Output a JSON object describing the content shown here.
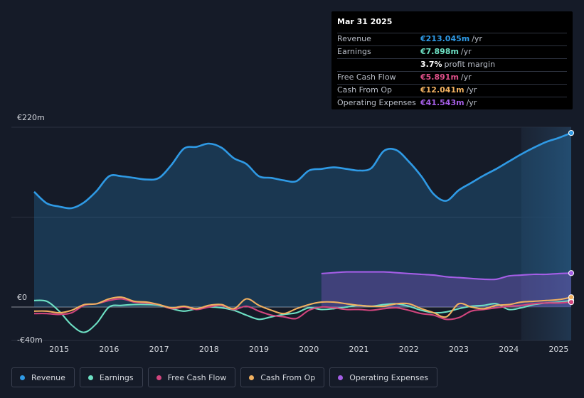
{
  "tooltip": {
    "date": "Mar 31 2025",
    "rows": [
      {
        "label": "Revenue",
        "value": "€213.045m",
        "unit": "/yr",
        "color": "#2f9ae5"
      },
      {
        "label": "Earnings",
        "value": "€7.898m",
        "unit": "/yr",
        "color": "#6de0c4"
      },
      {
        "label": "",
        "value": "3.7%",
        "unit": "profit margin",
        "color": "#ffffff"
      },
      {
        "label": "Free Cash Flow",
        "value": "€5.891m",
        "unit": "/yr",
        "color": "#e0508a"
      },
      {
        "label": "Cash From Op",
        "value": "€12.041m",
        "unit": "/yr",
        "color": "#f0b060"
      },
      {
        "label": "Operating Expenses",
        "value": "€41.543m",
        "unit": "/yr",
        "color": "#a45ee6"
      }
    ]
  },
  "legend": [
    {
      "label": "Revenue",
      "color": "#2f9ae5"
    },
    {
      "label": "Earnings",
      "color": "#6de0c4"
    },
    {
      "label": "Free Cash Flow",
      "color": "#d2457e"
    },
    {
      "label": "Cash From Op",
      "color": "#f0b060"
    },
    {
      "label": "Operating Expenses",
      "color": "#a45ee6"
    }
  ],
  "chart_data": {
    "type": "line",
    "y_tick_labels": [
      "€220m",
      "€0",
      "-€40m"
    ],
    "ylim": [
      -40,
      220
    ],
    "x_tick_labels": [
      "2015",
      "2016",
      "2017",
      "2018",
      "2019",
      "2020",
      "2021",
      "2022",
      "2023",
      "2024",
      "2025"
    ],
    "xlim": [
      2014.5,
      2025.25
    ],
    "forecast_shade_from": 2024.25,
    "series": [
      {
        "name": "Revenue",
        "color": "#2f9ae5",
        "fill": true,
        "x": [
          2014.5,
          2014.75,
          2015,
          2015.25,
          2015.5,
          2015.75,
          2016,
          2016.25,
          2016.5,
          2016.75,
          2017,
          2017.25,
          2017.5,
          2017.75,
          2018,
          2018.25,
          2018.5,
          2018.75,
          2019,
          2019.25,
          2019.5,
          2019.75,
          2020,
          2020.25,
          2020.5,
          2020.75,
          2021,
          2021.25,
          2021.5,
          2021.75,
          2022,
          2022.25,
          2022.5,
          2022.75,
          2023,
          2023.25,
          2023.5,
          2023.75,
          2024,
          2024.25,
          2024.5,
          2024.75,
          2025,
          2025.25
        ],
        "y": [
          141,
          127,
          123,
          121,
          128,
          142,
          160,
          160,
          158,
          156,
          158,
          174,
          194,
          196,
          200,
          195,
          182,
          175,
          160,
          158,
          155,
          154,
          167,
          169,
          171,
          169,
          167,
          170,
          191,
          192,
          178,
          160,
          138,
          130,
          143,
          152,
          161,
          169,
          178,
          187,
          195,
          202,
          207,
          213
        ]
      },
      {
        "name": "Earnings",
        "color": "#6de0c4",
        "x": [
          2014.5,
          2014.75,
          2015,
          2015.25,
          2015.5,
          2015.75,
          2016,
          2016.25,
          2016.5,
          2016.75,
          2017,
          2017.25,
          2017.5,
          2017.75,
          2018,
          2018.25,
          2018.5,
          2018.75,
          2019,
          2019.25,
          2019.5,
          2019.75,
          2020,
          2020.25,
          2020.5,
          2020.75,
          2021,
          2021.25,
          2021.5,
          2021.75,
          2022,
          2022.25,
          2022.5,
          2022.75,
          2023,
          2023.25,
          2023.5,
          2023.75,
          2024,
          2024.25,
          2024.5,
          2024.75,
          2025,
          2025.25
        ],
        "y": [
          8,
          7,
          -5,
          -22,
          -31,
          -20,
          0,
          2,
          3,
          3,
          2,
          -2,
          -5,
          -2,
          0,
          -1,
          -4,
          -10,
          -15,
          -12,
          -9,
          -7,
          -1,
          -3,
          -2,
          0,
          2,
          1,
          3,
          4,
          1,
          -4,
          -7,
          -6,
          -2,
          1,
          2,
          4,
          -3,
          -1,
          3,
          5,
          6,
          8
        ]
      },
      {
        "name": "Free Cash Flow",
        "color": "#d2457e",
        "x": [
          2014.5,
          2014.75,
          2015,
          2015.25,
          2015.5,
          2015.75,
          2016,
          2016.25,
          2016.5,
          2016.75,
          2017,
          2017.25,
          2017.5,
          2017.75,
          2018,
          2018.25,
          2018.5,
          2018.75,
          2019,
          2019.25,
          2019.5,
          2019.75,
          2020,
          2020.25,
          2020.5,
          2020.75,
          2021,
          2021.25,
          2021.5,
          2021.75,
          2022,
          2022.25,
          2022.5,
          2022.75,
          2023,
          2023.25,
          2023.5,
          2023.75,
          2024,
          2024.25,
          2024.5,
          2024.75,
          2025,
          2025.25
        ],
        "y": [
          -8,
          -8,
          -9,
          -7,
          2,
          4,
          8,
          10,
          6,
          5,
          3,
          -2,
          0,
          -3,
          0,
          2,
          -3,
          1,
          -5,
          -10,
          -12,
          -14,
          -4,
          0,
          -1,
          -3,
          -3,
          -4,
          -2,
          -1,
          -4,
          -8,
          -10,
          -15,
          -13,
          -5,
          -3,
          -1,
          1,
          2,
          4,
          5,
          5,
          6
        ]
      },
      {
        "name": "Cash From Op",
        "color": "#f0b060",
        "x": [
          2014.5,
          2014.75,
          2015,
          2015.25,
          2015.5,
          2015.75,
          2016,
          2016.25,
          2016.5,
          2016.75,
          2017,
          2017.25,
          2017.5,
          2017.75,
          2018,
          2018.25,
          2018.5,
          2018.75,
          2019,
          2019.25,
          2019.5,
          2019.75,
          2020,
          2020.25,
          2020.5,
          2020.75,
          2021,
          2021.25,
          2021.5,
          2021.75,
          2022,
          2022.25,
          2022.5,
          2022.75,
          2023,
          2023.25,
          2023.5,
          2023.75,
          2024,
          2024.25,
          2024.5,
          2024.75,
          2025,
          2025.25
        ],
        "y": [
          -5,
          -5,
          -7,
          -4,
          3,
          4,
          10,
          12,
          7,
          6,
          3,
          -1,
          1,
          -2,
          2,
          3,
          -2,
          10,
          2,
          -4,
          -8,
          -2,
          3,
          6,
          6,
          4,
          2,
          1,
          1,
          4,
          4,
          -2,
          -7,
          -12,
          4,
          0,
          -2,
          2,
          3,
          6,
          7,
          8,
          9,
          12
        ]
      },
      {
        "name": "Operating Expenses",
        "color": "#a45ee6",
        "fill": true,
        "x": [
          2020.25,
          2020.5,
          2020.75,
          2021,
          2021.25,
          2021.5,
          2021.75,
          2022,
          2022.25,
          2022.5,
          2022.75,
          2023,
          2023.25,
          2023.5,
          2023.75,
          2024,
          2024.25,
          2024.5,
          2024.75,
          2025,
          2025.25
        ],
        "y": [
          41,
          42,
          43,
          43,
          43,
          43,
          42,
          41,
          40,
          39,
          37,
          36,
          35,
          34,
          34,
          38,
          39,
          40,
          40,
          41,
          41.5
        ]
      }
    ]
  }
}
